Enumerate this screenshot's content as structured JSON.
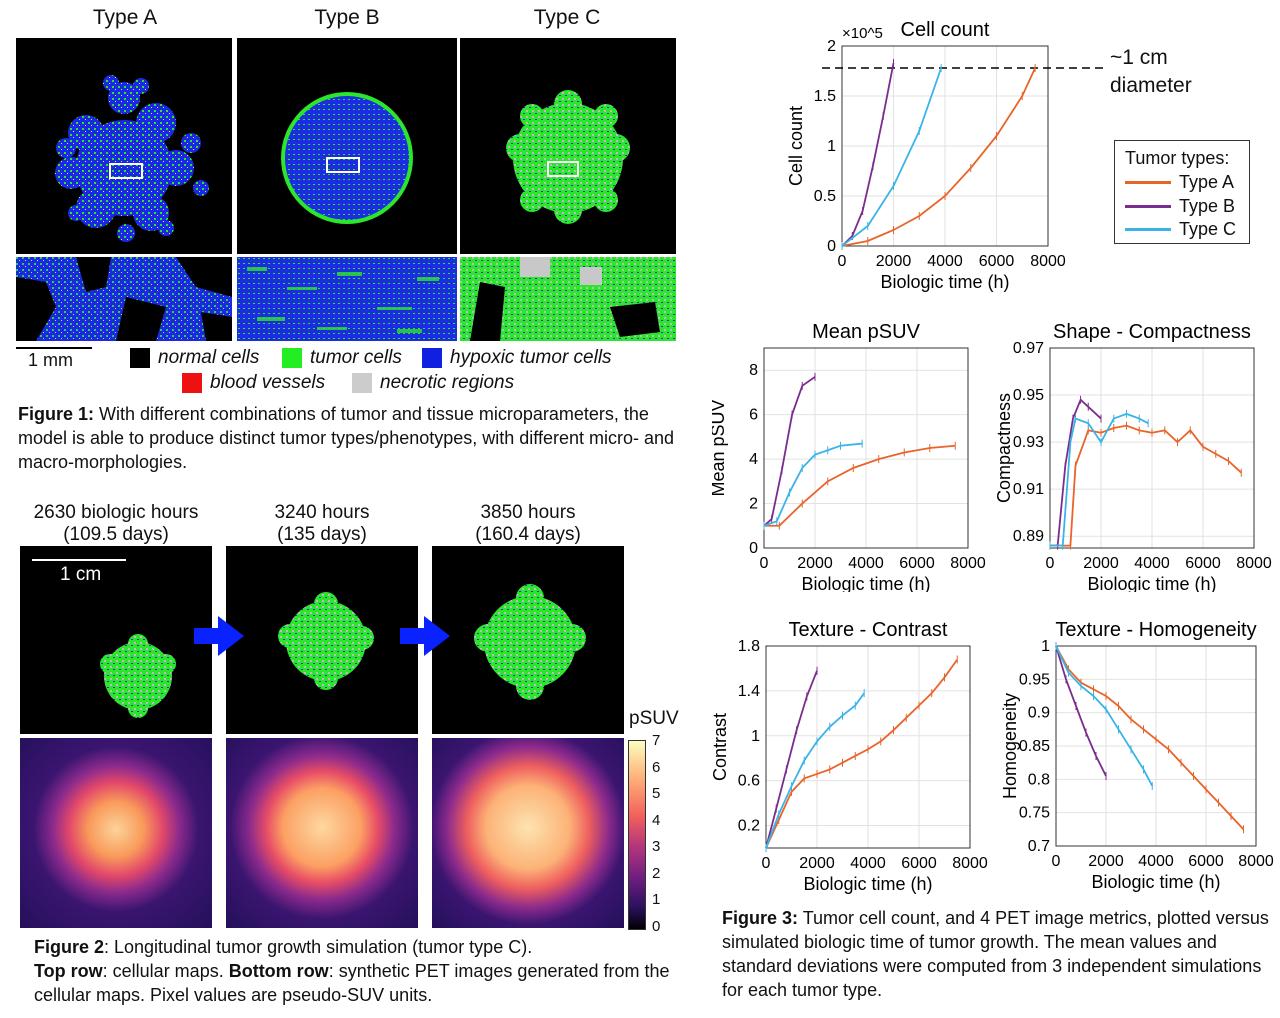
{
  "fig1": {
    "titles": [
      "Type A",
      "Type B",
      "Type C"
    ],
    "scalebar": "1 mm",
    "legend": [
      {
        "label": "normal cells",
        "color": "#000000"
      },
      {
        "label": "tumor cells",
        "color": "#22ee22"
      },
      {
        "label": "hypoxic tumor cells",
        "color": "#1020e0"
      },
      {
        "label": "blood vessels",
        "color": "#ee1111"
      },
      {
        "label": "necrotic regions",
        "color": "#cccccc"
      }
    ],
    "caption_bold": "Figure 1:",
    "caption_text": " With different combinations of tumor and tissue microparameters, the model is able to produce distinct tumor types/phenotypes, with different micro- and macro-morphologies."
  },
  "fig2": {
    "times": [
      {
        "line1": "2630 biologic hours",
        "line2": "(109.5 days)"
      },
      {
        "line1": "3240 hours",
        "line2": "(135 days)"
      },
      {
        "line1": "3850 hours",
        "line2": "(160.4 days)"
      }
    ],
    "scalebar": "1 cm",
    "colorbar_label": "pSUV",
    "colorbar_ticks": [
      "7",
      "6",
      "5",
      "4",
      "3",
      "2",
      "1",
      "0"
    ],
    "caption_p1_bold": "Figure 2",
    "caption_p1": ": Longitudinal tumor growth simulation (tumor type C).",
    "caption_p2_bold": "Top row",
    "caption_p2": ": cellular maps. ",
    "caption_p3_bold": "Bottom row",
    "caption_p3": ": synthetic PET images generated from the cellular maps. Pixel values are pseudo-SUV units."
  },
  "fig3": {
    "caption_bold": "Figure 3:",
    "caption_text": " Tumor cell count, and 4 PET image metrics, plotted versus simulated biologic time of tumor growth. The mean values and standard deviations were computed from 3 independent simulations for each tumor type.",
    "annotation_line1": "~1 cm",
    "annotation_line2": "diameter",
    "legend_title": "Tumor types:",
    "colors": {
      "A": "#e8642a",
      "B": "#7b2d8e",
      "C": "#3ab4e8"
    }
  },
  "chart_data": [
    {
      "type": "line",
      "title": "Cell count",
      "xlabel": "Biologic time (h)",
      "ylabel": "Cell count",
      "y_multiplier": "×10^5",
      "xlim": [
        0,
        8000
      ],
      "ylim": [
        0,
        2
      ],
      "xticks": [
        0,
        2000,
        4000,
        6000,
        8000
      ],
      "yticks": [
        0,
        0.5,
        1,
        1.5,
        2
      ],
      "grid": true,
      "legend_position": "right",
      "reference_line": 1.78,
      "series": [
        {
          "name": "Type A",
          "x": [
            0,
            1000,
            2000,
            3000,
            4000,
            5000,
            6000,
            7000,
            7500
          ],
          "y": [
            0.0,
            0.05,
            0.16,
            0.3,
            0.5,
            0.78,
            1.1,
            1.5,
            1.78
          ]
        },
        {
          "name": "Type B",
          "x": [
            0,
            400,
            800,
            1200,
            1600,
            2000
          ],
          "y": [
            0.0,
            0.1,
            0.35,
            0.8,
            1.3,
            1.83
          ]
        },
        {
          "name": "Type C",
          "x": [
            0,
            1000,
            2000,
            3000,
            3850
          ],
          "y": [
            0.0,
            0.2,
            0.6,
            1.15,
            1.78
          ]
        }
      ]
    },
    {
      "type": "line",
      "title": "Mean pSUV",
      "xlabel": "Biologic time (h)",
      "ylabel": "Mean pSUV",
      "xlim": [
        0,
        8000
      ],
      "ylim": [
        0,
        9
      ],
      "xticks": [
        0,
        2000,
        4000,
        6000,
        8000
      ],
      "yticks": [
        0,
        2,
        4,
        6,
        8
      ],
      "grid": true,
      "series": [
        {
          "name": "Type A",
          "x": [
            0,
            600,
            1500,
            2500,
            3500,
            4500,
            5500,
            6500,
            7500
          ],
          "y": [
            1.0,
            1.0,
            2.0,
            3.0,
            3.6,
            4.0,
            4.3,
            4.5,
            4.6
          ]
        },
        {
          "name": "Type B",
          "x": [
            0,
            300,
            700,
            1100,
            1500,
            2000
          ],
          "y": [
            1.0,
            1.3,
            3.5,
            6.0,
            7.3,
            7.7
          ]
        },
        {
          "name": "Type C",
          "x": [
            0,
            500,
            1000,
            1500,
            2000,
            2500,
            3000,
            3850
          ],
          "y": [
            1.0,
            1.2,
            2.5,
            3.6,
            4.2,
            4.4,
            4.6,
            4.7
          ]
        }
      ]
    },
    {
      "type": "line",
      "title": "Shape - Compactness",
      "xlabel": "Biologic time (h)",
      "ylabel": "Compactness",
      "xlim": [
        0,
        8000
      ],
      "ylim": [
        0.885,
        0.97
      ],
      "xticks": [
        0,
        2000,
        4000,
        6000,
        8000
      ],
      "yticks": [
        0.89,
        0.91,
        0.93,
        0.95,
        0.97
      ],
      "grid": true,
      "series": [
        {
          "name": "Type A",
          "x": [
            0,
            800,
            1000,
            1500,
            2000,
            2500,
            3000,
            3500,
            4000,
            4500,
            5000,
            5500,
            6000,
            6500,
            7000,
            7500
          ],
          "y": [
            0.886,
            0.886,
            0.92,
            0.935,
            0.934,
            0.936,
            0.937,
            0.935,
            0.934,
            0.935,
            0.93,
            0.935,
            0.928,
            0.925,
            0.922,
            0.917
          ]
        },
        {
          "name": "Type B",
          "x": [
            0,
            300,
            600,
            900,
            1200,
            1500,
            2000
          ],
          "y": [
            0.886,
            0.886,
            0.92,
            0.94,
            0.948,
            0.945,
            0.94
          ]
        },
        {
          "name": "Type C",
          "x": [
            0,
            500,
            800,
            1000,
            1500,
            2000,
            2500,
            3000,
            3500,
            3850
          ],
          "y": [
            0.886,
            0.886,
            0.93,
            0.94,
            0.938,
            0.93,
            0.94,
            0.942,
            0.94,
            0.938
          ]
        }
      ]
    },
    {
      "type": "line",
      "title": "Texture - Contrast",
      "xlabel": "Biologic time (h)",
      "ylabel": "Contrast",
      "xlim": [
        0,
        8000
      ],
      "ylim": [
        0,
        1.8
      ],
      "xticks": [
        0,
        2000,
        4000,
        6000,
        8000
      ],
      "yticks": [
        0.2,
        0.6,
        1,
        1.4,
        1.8
      ],
      "grid": true,
      "series": [
        {
          "name": "Type A",
          "x": [
            0,
            500,
            1000,
            1500,
            2000,
            2500,
            3000,
            3500,
            4000,
            4500,
            5000,
            5500,
            6000,
            6500,
            7000,
            7500
          ],
          "y": [
            0.0,
            0.25,
            0.5,
            0.62,
            0.66,
            0.7,
            0.76,
            0.82,
            0.88,
            0.95,
            1.05,
            1.16,
            1.27,
            1.38,
            1.52,
            1.68
          ]
        },
        {
          "name": "Type B",
          "x": [
            0,
            400,
            800,
            1200,
            1600,
            2000
          ],
          "y": [
            0.0,
            0.35,
            0.7,
            1.05,
            1.35,
            1.58
          ]
        },
        {
          "name": "Type C",
          "x": [
            0,
            500,
            1000,
            1500,
            2000,
            2500,
            3000,
            3500,
            3850
          ],
          "y": [
            0.0,
            0.3,
            0.55,
            0.78,
            0.95,
            1.08,
            1.18,
            1.27,
            1.38
          ]
        }
      ]
    },
    {
      "type": "line",
      "title": "Texture - Homogeneity",
      "xlabel": "Biologic time (h)",
      "ylabel": "Homogeneity",
      "xlim": [
        0,
        8000
      ],
      "ylim": [
        0.7,
        1
      ],
      "xticks": [
        0,
        2000,
        4000,
        6000,
        8000
      ],
      "yticks": [
        0.7,
        0.75,
        0.8,
        0.85,
        0.9,
        0.95,
        1
      ],
      "grid": true,
      "series": [
        {
          "name": "Type A",
          "x": [
            0,
            500,
            1000,
            1500,
            2000,
            2500,
            3000,
            3500,
            4000,
            4500,
            5000,
            5500,
            6000,
            6500,
            7000,
            7500
          ],
          "y": [
            1.0,
            0.965,
            0.945,
            0.935,
            0.925,
            0.91,
            0.89,
            0.875,
            0.86,
            0.845,
            0.825,
            0.805,
            0.785,
            0.765,
            0.745,
            0.725
          ]
        },
        {
          "name": "Type B",
          "x": [
            0,
            400,
            800,
            1200,
            1600,
            2000
          ],
          "y": [
            1.0,
            0.95,
            0.91,
            0.87,
            0.835,
            0.805
          ]
        },
        {
          "name": "Type C",
          "x": [
            0,
            500,
            1000,
            1500,
            2000,
            2500,
            3000,
            3500,
            3850
          ],
          "y": [
            1.0,
            0.96,
            0.94,
            0.925,
            0.905,
            0.875,
            0.845,
            0.815,
            0.79
          ]
        }
      ]
    }
  ]
}
